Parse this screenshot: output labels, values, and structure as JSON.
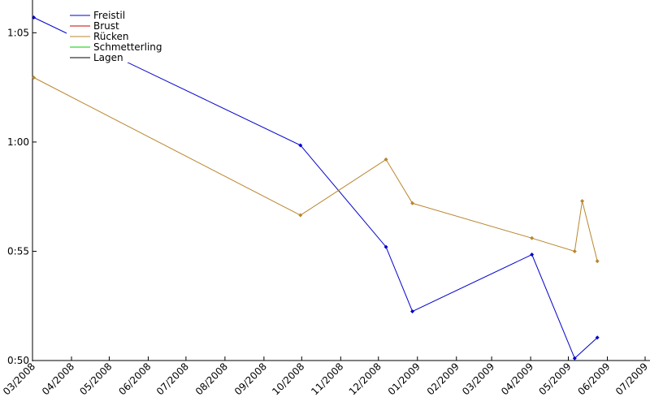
{
  "chart_data": {
    "type": "line",
    "title": "",
    "xlabel": "",
    "ylabel": "",
    "x_tick_labels": [
      "03/2008",
      "04/2008",
      "05/2008",
      "06/2008",
      "07/2008",
      "08/2008",
      "09/2008",
      "10/2008",
      "11/2008",
      "12/2008",
      "01/2009",
      "02/2009",
      "03/2009",
      "04/2009",
      "05/2009",
      "06/2009",
      "07/2009"
    ],
    "y_tick_labels": [
      "0:50",
      "0:55",
      "1:00",
      "1:05"
    ],
    "ylim_seconds": [
      50,
      66.5
    ],
    "x_range": [
      "2008-03-01",
      "2009-07-01"
    ],
    "grid": false,
    "legend": "top-left",
    "series": [
      {
        "name": "Freistil",
        "color": "#0000cc",
        "markers": true,
        "points": [
          {
            "x": "2008-03-02",
            "y_seconds": 65.7
          },
          {
            "x": "2008-09-30",
            "y_seconds": 59.85
          },
          {
            "x": "2008-12-07",
            "y_seconds": 55.2
          },
          {
            "x": "2008-12-28",
            "y_seconds": 52.25
          },
          {
            "x": "2009-04-02",
            "y_seconds": 54.85
          },
          {
            "x": "2009-05-06",
            "y_seconds": 50.1
          },
          {
            "x": "2009-05-24",
            "y_seconds": 51.05
          }
        ]
      },
      {
        "name": "Brust",
        "color": "#cc0000",
        "markers": false,
        "points": []
      },
      {
        "name": "Rücken",
        "color": "#b8862e",
        "markers": true,
        "points": [
          {
            "x": "2008-03-02",
            "y_seconds": 62.95
          },
          {
            "x": "2008-09-30",
            "y_seconds": 56.65
          },
          {
            "x": "2008-12-07",
            "y_seconds": 59.2
          },
          {
            "x": "2008-12-28",
            "y_seconds": 57.2
          },
          {
            "x": "2009-04-02",
            "y_seconds": 55.6
          },
          {
            "x": "2009-05-06",
            "y_seconds": 55.0
          },
          {
            "x": "2009-05-12",
            "y_seconds": 57.3
          },
          {
            "x": "2009-05-24",
            "y_seconds": 54.55
          }
        ]
      },
      {
        "name": "Schmetterling",
        "color": "#00cc00",
        "markers": false,
        "points": []
      },
      {
        "name": "Lagen",
        "color": "#000000",
        "markers": false,
        "points": []
      }
    ]
  }
}
